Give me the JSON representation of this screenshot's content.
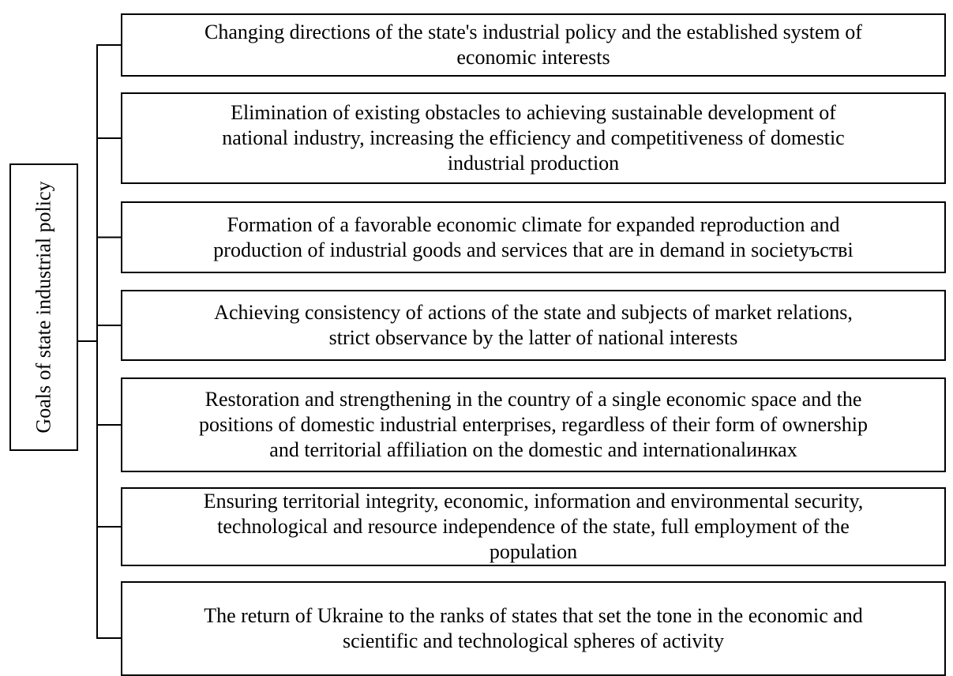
{
  "root": {
    "label": "Goals of state industrial policy"
  },
  "nodes": [
    {
      "lines": [
        "Changing directions of the state's industrial policy and the established system of",
        "economic interests"
      ]
    },
    {
      "lines": [
        "Elimination of existing obstacles to achieving sustainable development of",
        "national industry, increasing the efficiency and competitiveness of domestic",
        "industrial production"
      ]
    },
    {
      "lines": [
        "Formation of a favorable economic climate for expanded reproduction and",
        "production of industrial goods and services that are in demand in societyъстві"
      ]
    },
    {
      "lines": [
        "Achieving consistency of actions of the state and subjects of market relations,",
        "strict observance by the latter of national interests"
      ]
    },
    {
      "lines": [
        "Restoration and strengthening in the country of a single economic space and the",
        "positions of domestic industrial enterprises, regardless of their form of ownership",
        "and territorial affiliation on the domestic and internationalинках"
      ]
    },
    {
      "lines": [
        "Ensuring territorial integrity, economic, information and environmental security,",
        "technological and resource independence of the state, full employment of the",
        "population"
      ]
    },
    {
      "lines": [
        "The return of Ukraine to the ranks of states that set the tone in the economic and",
        "scientific and technological spheres of activity"
      ]
    }
  ]
}
